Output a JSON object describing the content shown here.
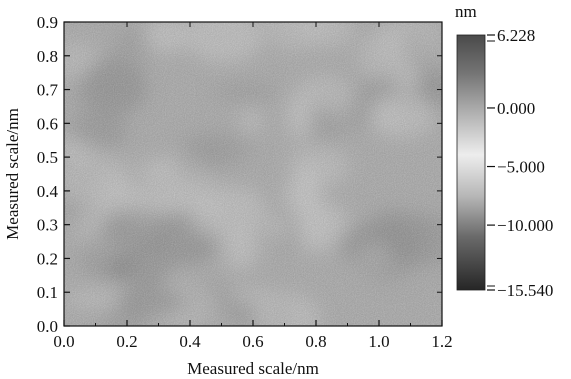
{
  "chart_data": {
    "type": "heatmap",
    "title": "",
    "xlabel": "Measured scale/nm",
    "ylabel": "Measured scale/nm",
    "xlim": [
      0.0,
      1.2
    ],
    "ylim": [
      0.0,
      0.9
    ],
    "x_ticks": [
      0.0,
      0.2,
      0.4,
      0.6,
      0.8,
      1.0,
      1.2
    ],
    "x_tick_labels": [
      "0.0",
      "0.2",
      "0.4",
      "0.6",
      "0.8",
      "1.0",
      "1.2"
    ],
    "y_ticks": [
      0.0,
      0.1,
      0.2,
      0.3,
      0.4,
      0.5,
      0.6,
      0.7,
      0.8,
      0.9
    ],
    "y_tick_labels": [
      "0.0",
      "0.1",
      "0.2",
      "0.3",
      "0.4",
      "0.5",
      "0.6",
      "0.7",
      "0.8",
      "0.9"
    ],
    "colorbar": {
      "unit": "nm",
      "min": -15.54,
      "max": 6.228,
      "ticks": [
        6.228,
        0.0,
        -5.0,
        -10.0,
        -15.54
      ],
      "tick_labels": [
        "6.228",
        "0.000",
        "−5.000",
        "−10.000",
        "−15.540"
      ],
      "stops": [
        {
          "value": 6.228,
          "color": "#4a4a4a"
        },
        {
          "value": 3.0,
          "color": "#747474"
        },
        {
          "value": 0.0,
          "color": "#a9a9a9"
        },
        {
          "value": -4.0,
          "color": "#ededed"
        },
        {
          "value": -7.5,
          "color": "#b7b7b7"
        },
        {
          "value": -11.0,
          "color": "#6a6a6a"
        },
        {
          "value": -15.54,
          "color": "#262626"
        }
      ]
    },
    "grid": false,
    "legend": "none",
    "image": {
      "description_colors": {
        "base": "#a8a8a8",
        "light": "#d2d2d2",
        "dark": "#7f7f7f"
      }
    }
  }
}
